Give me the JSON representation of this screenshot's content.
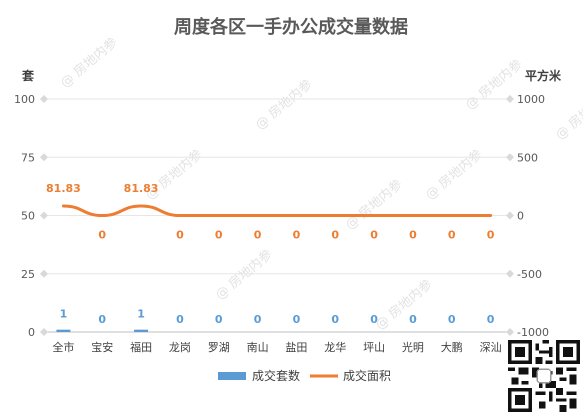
{
  "chart_data": {
    "type": "bar+line",
    "title": "周度各区一手办公成交量数据",
    "ylabel_left": "套",
    "ylabel_right": "平方米",
    "ylim_left": [
      0,
      100
    ],
    "ylim_right": [
      -1000,
      1000
    ],
    "yticks_left": [
      "0",
      "25",
      "50",
      "75",
      "100"
    ],
    "yticks_right": [
      "-1000",
      "-500",
      "0",
      "500",
      "1000"
    ],
    "categories": [
      "全市",
      "宝安",
      "福田",
      "龙岗",
      "罗湖",
      "南山",
      "盐田",
      "龙华",
      "坪山",
      "光明",
      "大鹏",
      "深汕"
    ],
    "series": [
      {
        "name": "成交套数",
        "type": "bar",
        "axis": "left",
        "values": [
          1,
          0,
          1,
          0,
          0,
          0,
          0,
          0,
          0,
          0,
          0,
          0
        ],
        "labels": [
          "1",
          "0",
          "1",
          "0",
          "0",
          "0",
          "0",
          "0",
          "0",
          "0",
          "0",
          "0"
        ],
        "color": "#5B9BD5"
      },
      {
        "name": "成交面积",
        "type": "line",
        "axis": "right",
        "smooth": true,
        "values": [
          81.83,
          0,
          81.83,
          0,
          0,
          0,
          0,
          0,
          0,
          0,
          0,
          0
        ],
        "labels": [
          "81.83",
          "0",
          "81.83",
          "0",
          "0",
          "0",
          "0",
          "0",
          "0",
          "0",
          "0",
          "0"
        ],
        "color": "#ED7D31"
      }
    ],
    "legend_position": "bottom",
    "grid": true,
    "watermark": "@ 房地内参"
  }
}
